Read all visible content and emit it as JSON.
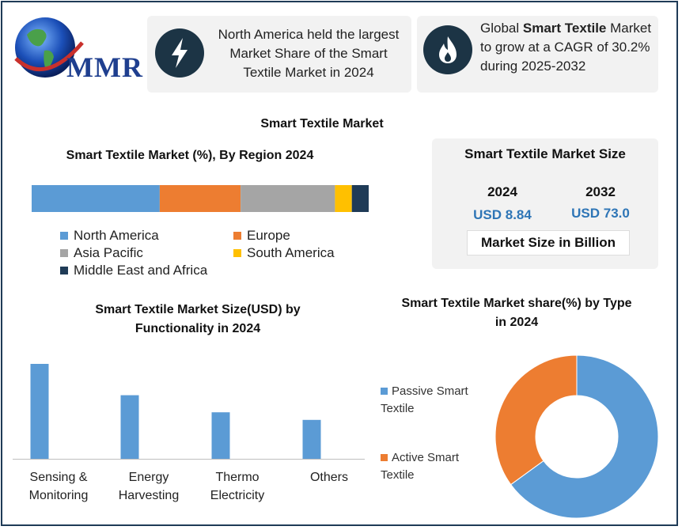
{
  "logo": {
    "text": "MMR"
  },
  "highlight_1": {
    "text": "North America held the largest Market Share of the Smart Textile Market in 2024",
    "icon": "lightning-icon"
  },
  "highlight_2": {
    "prefix": "Global ",
    "bold": "Smart Textile",
    "suffix": " Market to grow at a CAGR of 30.2% during 2025-2032",
    "icon": "flame-icon"
  },
  "page_title": "Smart Textile Market",
  "market_size": {
    "title": "Smart Textile Market Size",
    "year_a": "2024",
    "year_b": "2032",
    "value_a": "USD 8.84",
    "value_b": "USD 73.0",
    "unit_label": "Market Size in Billion"
  },
  "colors": {
    "blue": "#5b9bd5",
    "orange": "#ed7d31",
    "gray": "#a5a5a5",
    "yellow": "#ffc000",
    "navy": "#1f3b57",
    "dark_icon": "#1c3445"
  },
  "chart_data": [
    {
      "type": "bar",
      "orientation": "horizontal-stacked",
      "title": "Smart Textile Market (%), By Region 2024",
      "categories": [
        "North America",
        "Europe",
        "Asia Pacific",
        "South America",
        "Middle East and Africa"
      ],
      "values": [
        38,
        24,
        28,
        5,
        5
      ],
      "colors": [
        "#5b9bd5",
        "#ed7d31",
        "#a5a5a5",
        "#ffc000",
        "#1f3b57"
      ],
      "legend": "bottom",
      "xlim": [
        0,
        100
      ]
    },
    {
      "type": "bar",
      "title": "Smart Textile Market Size(USD) by Functionality in 2024",
      "categories": [
        "Sensing & Monitoring",
        "Energy Harvesting",
        "Thermo Electricity",
        "Others"
      ],
      "values": [
        100,
        67,
        49,
        41
      ],
      "color": "#5b9bd5",
      "ylim": [
        0,
        100
      ],
      "grid": false
    },
    {
      "type": "pie",
      "subtype": "donut",
      "title": "Smart Textile Market share(%) by Type in 2024",
      "categories": [
        "Passive Smart Textile",
        "Active Smart Textile"
      ],
      "values": [
        65,
        35
      ],
      "colors": [
        "#5b9bd5",
        "#ed7d31"
      ],
      "legend": "left"
    }
  ]
}
